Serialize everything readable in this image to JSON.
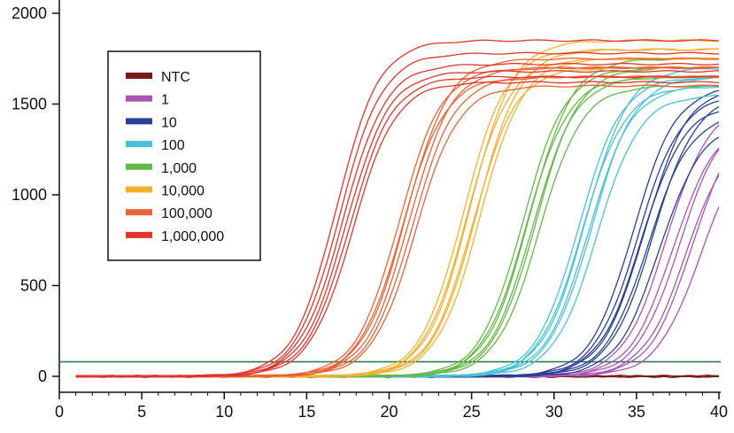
{
  "chart_data": {
    "type": "line",
    "title": "",
    "xlabel": "",
    "ylabel": "",
    "xlim": [
      0,
      40
    ],
    "ylim": [
      -30,
      2050
    ],
    "x_ticks": [
      "0",
      "5",
      "10",
      "15",
      "20",
      "25",
      "30",
      "35",
      "40"
    ],
    "y_ticks": [
      "0",
      "500",
      "1000",
      "1500",
      "2000"
    ],
    "x_minor_tick_step": 1,
    "x_start": 1,
    "x_end": 40,
    "grid": false,
    "legend_position": "upper-left",
    "threshold": {
      "value": 80,
      "color": "#2e7d4f"
    },
    "series": [
      {
        "name": "NTC",
        "color": "#7a1a14",
        "curves": [
          {
            "ct": null,
            "plateau": 0
          },
          {
            "ct": null,
            "plateau": 0
          },
          {
            "ct": null,
            "plateau": 0
          }
        ]
      },
      {
        "name": "1",
        "color": "#a855b5",
        "curves": [
          {
            "ct": 33.6,
            "plateau": 1500
          },
          {
            "ct": 34.0,
            "plateau": 1400
          },
          {
            "ct": 34.4,
            "plateau": 1450
          },
          {
            "ct": 34.8,
            "plateau": 1350
          },
          {
            "ct": 35.2,
            "plateau": 1450
          },
          {
            "ct": 35.6,
            "plateau": 1300
          }
        ]
      },
      {
        "name": "10",
        "color": "#2a3f96",
        "curves": [
          {
            "ct": 31.6,
            "plateau": 1600
          },
          {
            "ct": 31.9,
            "plateau": 1550
          },
          {
            "ct": 32.1,
            "plateau": 1500
          },
          {
            "ct": 32.3,
            "plateau": 1600
          },
          {
            "ct": 32.5,
            "plateau": 1450
          },
          {
            "ct": 32.8,
            "plateau": 1550
          },
          {
            "ct": 33.2,
            "plateau": 1400
          }
        ]
      },
      {
        "name": "100",
        "color": "#45c2d6",
        "curves": [
          {
            "ct": 28.3,
            "plateau": 1650
          },
          {
            "ct": 28.5,
            "plateau": 1600
          },
          {
            "ct": 28.7,
            "plateau": 1700
          },
          {
            "ct": 28.9,
            "plateau": 1600
          },
          {
            "ct": 29.1,
            "plateau": 1650
          },
          {
            "ct": 29.4,
            "plateau": 1550
          }
        ]
      },
      {
        "name": "1,000",
        "color": "#62b947",
        "curves": [
          {
            "ct": 24.9,
            "plateau": 1700
          },
          {
            "ct": 25.1,
            "plateau": 1650
          },
          {
            "ct": 25.3,
            "plateau": 1750
          },
          {
            "ct": 25.5,
            "plateau": 1650
          },
          {
            "ct": 25.7,
            "plateau": 1700
          },
          {
            "ct": 25.9,
            "plateau": 1600
          }
        ]
      },
      {
        "name": "10,000",
        "color": "#f2b02e",
        "curves": [
          {
            "ct": 21.3,
            "plateau": 1800
          },
          {
            "ct": 21.5,
            "plateau": 1750
          },
          {
            "ct": 21.7,
            "plateau": 1850
          },
          {
            "ct": 21.9,
            "plateau": 1700
          },
          {
            "ct": 22.1,
            "plateau": 1800
          },
          {
            "ct": 22.3,
            "plateau": 1750
          }
        ]
      },
      {
        "name": "100,000",
        "color": "#ea6235",
        "curves": [
          {
            "ct": 17.4,
            "plateau": 1700
          },
          {
            "ct": 17.6,
            "plateau": 1650
          },
          {
            "ct": 17.8,
            "plateau": 1750
          },
          {
            "ct": 18.0,
            "plateau": 1700
          },
          {
            "ct": 18.2,
            "plateau": 1650
          },
          {
            "ct": 18.4,
            "plateau": 1600
          }
        ]
      },
      {
        "name": "1,000,000",
        "color": "#e0352b",
        "curves": [
          {
            "ct": 13.6,
            "plateau": 1850
          },
          {
            "ct": 13.8,
            "plateau": 1780
          },
          {
            "ct": 14.0,
            "plateau": 1720
          },
          {
            "ct": 14.2,
            "plateau": 1680
          },
          {
            "ct": 14.4,
            "plateau": 1650
          },
          {
            "ct": 14.6,
            "plateau": 1620
          }
        ]
      }
    ]
  }
}
